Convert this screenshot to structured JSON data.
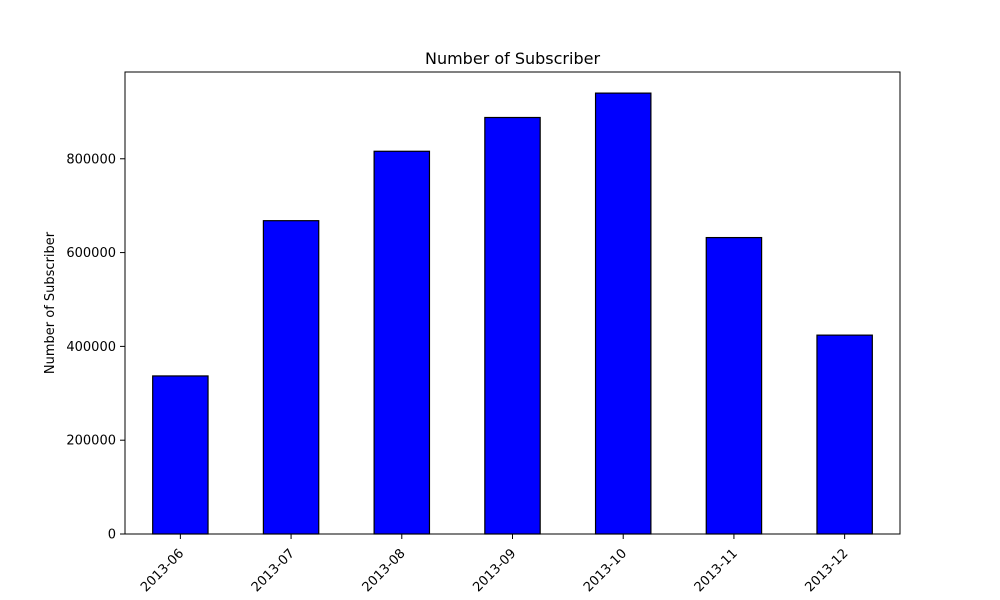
{
  "chart_data": {
    "type": "bar",
    "title": "Number of Subscriber",
    "xlabel": "",
    "ylabel": "Number of Subscriber",
    "categories": [
      "2013-06",
      "2013-07",
      "2013-08",
      "2013-09",
      "2013-10",
      "2013-11",
      "2013-12"
    ],
    "values": [
      337000,
      668000,
      816000,
      888000,
      940000,
      632000,
      424000
    ],
    "ylim": [
      0,
      985000
    ],
    "yticks": [
      0,
      200000,
      400000,
      600000,
      800000
    ],
    "ytick_labels": [
      "0",
      "200000",
      "400000",
      "600000",
      "800000"
    ],
    "grid": false,
    "bar_color": "#0000ff",
    "edge_color": "#000000"
  }
}
